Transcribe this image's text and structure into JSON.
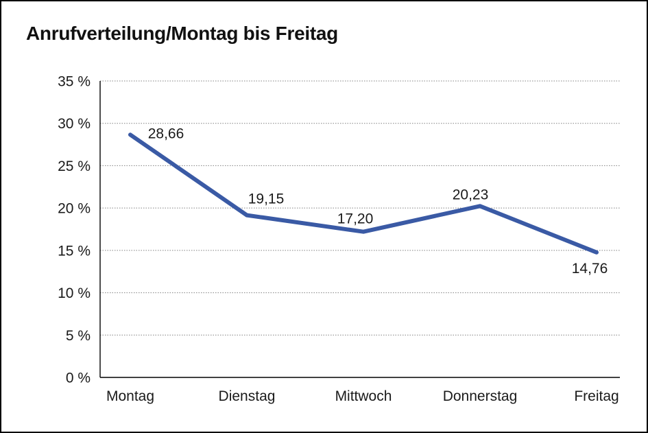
{
  "window": {
    "background_color": "#ffffff",
    "border_color": "#000000"
  },
  "header": {
    "title": "Anrufverteilung/Montag bis Freitag"
  },
  "chart_data": {
    "type": "line",
    "title": "Anrufverteilung/Montag bis Freitag",
    "categories": [
      "Montag",
      "Dienstag",
      "Mittwoch",
      "Donnerstag",
      "Freitag"
    ],
    "values": [
      28.66,
      19.15,
      17.2,
      20.23,
      14.76
    ],
    "value_labels": [
      "28,66",
      "19,15",
      "17,20",
      "20,23",
      "14,76"
    ],
    "unit": "%",
    "ylim": [
      0,
      35
    ],
    "ytick_step": 5,
    "yticks": [
      {
        "value": 35,
        "label": "35 %"
      },
      {
        "value": 30,
        "label": "30 %"
      },
      {
        "value": 25,
        "label": "25 %"
      },
      {
        "value": 20,
        "label": "20 %"
      },
      {
        "value": 15,
        "label": "15 %"
      },
      {
        "value": 10,
        "label": "10 %"
      },
      {
        "value": 5,
        "label": "5 %"
      },
      {
        "value": 0,
        "label": "0 %"
      }
    ],
    "grid": "horizontal-dotted",
    "legend": "none",
    "colors": {
      "line": "#3A5AA5",
      "axis": "#000000",
      "gridline": "#808080",
      "text": "#1a1a1a"
    }
  }
}
